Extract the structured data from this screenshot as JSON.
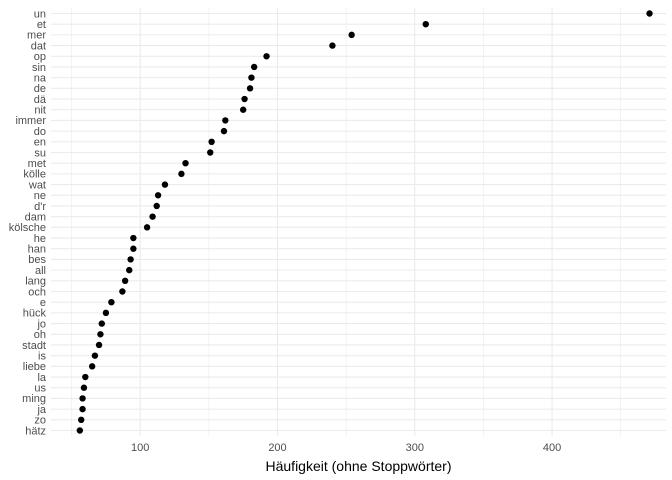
{
  "chart_data": {
    "type": "scatter",
    "xlabel": "Häufigkeit (ohne Stoppwörter)",
    "ylabel": "",
    "xlim": [
      35,
      483
    ],
    "x_ticks": [
      100,
      200,
      300,
      400
    ],
    "x_tick_labels": [
      "100",
      "200",
      "300",
      "400"
    ],
    "grid": true,
    "legend": "none",
    "point_color": "#000000",
    "categories": [
      "un",
      "et",
      "mer",
      "dat",
      "op",
      "sin",
      "na",
      "de",
      "dä",
      "nit",
      "immer",
      "do",
      "en",
      "su",
      "met",
      "kölle",
      "wat",
      "ne",
      "d'r",
      "dam",
      "kölsche",
      "he",
      "han",
      "bes",
      "all",
      "lang",
      "och",
      "e",
      "hück",
      "jo",
      "oh",
      "stadt",
      "is",
      "liebe",
      "la",
      "us",
      "ming",
      "ja",
      "zo",
      "hätz"
    ],
    "values": [
      471,
      308,
      254,
      240,
      192,
      183,
      181,
      180,
      176,
      175,
      162,
      161,
      152,
      151,
      133,
      130,
      118,
      113,
      112,
      109,
      105,
      95,
      95,
      93,
      92,
      89,
      87,
      79,
      75,
      72,
      71,
      70,
      67,
      65,
      60,
      59,
      58,
      58,
      57,
      56
    ]
  }
}
